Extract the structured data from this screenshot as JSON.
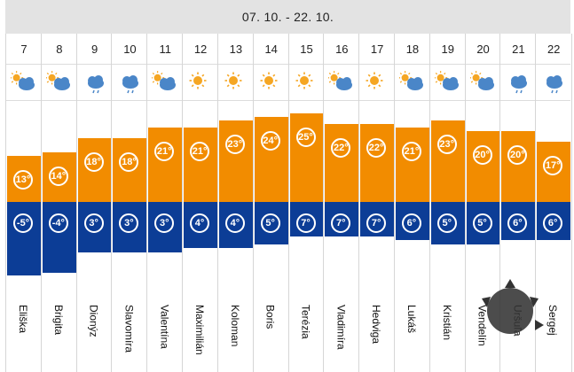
{
  "header": {
    "date_range": "07. 10. - 22. 10."
  },
  "colors": {
    "max": "#f28c00",
    "min": "#0c3d96",
    "sun": "#f5a623",
    "cloud": "#4a86c8"
  },
  "days": [
    {
      "day": "7",
      "icon": "sun-cloud-icon",
      "max": "13°",
      "min": "-5°",
      "max_value": 13,
      "min_value": -5,
      "name": "Eliška"
    },
    {
      "day": "8",
      "icon": "sun-cloud-icon",
      "max": "14°",
      "min": "-4°",
      "max_value": 14,
      "min_value": -4,
      "name": "Brigita"
    },
    {
      "day": "9",
      "icon": "rain-cloud-icon",
      "max": "18°",
      "min": "3°",
      "max_value": 18,
      "min_value": 3,
      "name": "Dionýz"
    },
    {
      "day": "10",
      "icon": "rain-cloud-icon",
      "max": "18°",
      "min": "3°",
      "max_value": 18,
      "min_value": 3,
      "name": "Slavomíra"
    },
    {
      "day": "11",
      "icon": "sun-cloud-icon",
      "max": "21°",
      "min": "3°",
      "max_value": 21,
      "min_value": 3,
      "name": "Valentína"
    },
    {
      "day": "12",
      "icon": "sun-icon",
      "max": "21°",
      "min": "4°",
      "max_value": 21,
      "min_value": 4,
      "name": "Maximilián"
    },
    {
      "day": "13",
      "icon": "sun-icon",
      "max": "23°",
      "min": "4°",
      "max_value": 23,
      "min_value": 4,
      "name": "Koloman"
    },
    {
      "day": "14",
      "icon": "sun-icon",
      "max": "24°",
      "min": "5°",
      "max_value": 24,
      "min_value": 5,
      "name": "Boris"
    },
    {
      "day": "15",
      "icon": "sun-icon",
      "max": "25°",
      "min": "7°",
      "max_value": 25,
      "min_value": 7,
      "name": "Terézia"
    },
    {
      "day": "16",
      "icon": "sun-cloud-icon",
      "max": "22°",
      "min": "7°",
      "max_value": 22,
      "min_value": 7,
      "name": "Vladimíra"
    },
    {
      "day": "17",
      "icon": "sun-icon",
      "max": "22°",
      "min": "7°",
      "max_value": 22,
      "min_value": 7,
      "name": "Hedviga"
    },
    {
      "day": "18",
      "icon": "sun-cloud-icon",
      "max": "21°",
      "min": "6°",
      "max_value": 21,
      "min_value": 6,
      "name": "Lukáš"
    },
    {
      "day": "19",
      "icon": "sun-cloud-icon",
      "max": "23°",
      "min": "5°",
      "max_value": 23,
      "min_value": 5,
      "name": "Kristián"
    },
    {
      "day": "20",
      "icon": "sun-cloud-icon",
      "max": "20°",
      "min": "5°",
      "max_value": 20,
      "min_value": 5,
      "name": "Vendelín"
    },
    {
      "day": "21",
      "icon": "rain-cloud-icon",
      "max": "20°",
      "min": "6°",
      "max_value": 20,
      "min_value": 6,
      "name": "Uršuľa"
    },
    {
      "day": "22",
      "icon": "rain-cloud-icon",
      "max": "17°",
      "min": "6°",
      "max_value": 17,
      "min_value": 6,
      "name": "Sergej"
    }
  ]
}
